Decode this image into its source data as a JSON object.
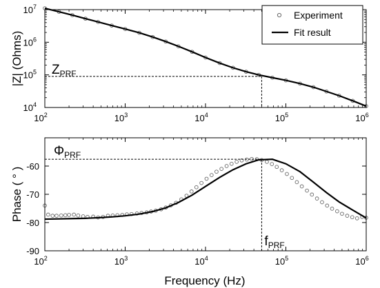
{
  "chart_data": [
    {
      "type": "line",
      "ylabel": "|Z| (Ohms)",
      "xlabel": "",
      "x_scale": "log",
      "y_scale": "log",
      "xlim": [
        100,
        1000000
      ],
      "ylim": [
        10000,
        10000000
      ],
      "x_ticks": [
        {
          "value": 100,
          "base": "10",
          "exp": "2"
        },
        {
          "value": 1000,
          "base": "10",
          "exp": "3"
        },
        {
          "value": 10000,
          "base": "10",
          "exp": "4"
        },
        {
          "value": 100000,
          "base": "10",
          "exp": "5"
        },
        {
          "value": 1000000,
          "base": "10",
          "exp": "6"
        }
      ],
      "y_ticks": [
        {
          "value": 10000,
          "base": "10",
          "exp": "4"
        },
        {
          "value": 100000,
          "base": "10",
          "exp": "5"
        },
        {
          "value": 1000000,
          "base": "10",
          "exp": "6"
        },
        {
          "value": 10000000,
          "base": "10",
          "exp": "7"
        }
      ],
      "legend": {
        "placement": "top-right",
        "entries": [
          {
            "label": "Experiment",
            "marker": "circle"
          },
          {
            "label": "Fit result",
            "marker": "line"
          }
        ]
      },
      "series": [
        {
          "name": "Experiment",
          "style": "markers",
          "x": [
            100,
            150,
            220,
            320,
            460,
            680,
            1000,
            1500,
            2200,
            3200,
            4600,
            6800,
            10000,
            15000,
            22000,
            32000,
            46000,
            68000,
            100000,
            150000,
            220000,
            320000,
            460000,
            680000,
            1000000
          ],
          "y": [
            11000000,
            8600000,
            6800000,
            5300000,
            4200000,
            3250000,
            2550000,
            1950000,
            1450000,
            1050000,
            750000,
            510000,
            340000,
            230000,
            165000,
            125000,
            100000,
            82000,
            68000,
            54000,
            42000,
            31000,
            23000,
            16000,
            11000
          ]
        },
        {
          "name": "Fit result",
          "style": "line",
          "x": [
            100,
            150,
            220,
            320,
            460,
            680,
            1000,
            1500,
            2200,
            3200,
            4600,
            6800,
            10000,
            15000,
            22000,
            32000,
            46000,
            68000,
            100000,
            150000,
            220000,
            320000,
            460000,
            680000,
            1000000
          ],
          "y": [
            11000000,
            8600000,
            6800000,
            5300000,
            4200000,
            3250000,
            2550000,
            1950000,
            1450000,
            1050000,
            750000,
            510000,
            340000,
            230000,
            165000,
            125000,
            100000,
            82000,
            68000,
            54000,
            42000,
            31000,
            23000,
            16000,
            11000
          ]
        }
      ],
      "annotations": [
        {
          "main": "Z",
          "sub": "PRF",
          "guide": "horizontal",
          "value": 90000
        }
      ]
    },
    {
      "type": "line",
      "ylabel": "Phase ( ° )",
      "xlabel": "Frequency (Hz)",
      "x_scale": "log",
      "xlim": [
        100,
        1000000
      ],
      "ylim": [
        -90,
        -50
      ],
      "x_ticks": [
        {
          "value": 100,
          "base": "10",
          "exp": "2"
        },
        {
          "value": 1000,
          "base": "10",
          "exp": "3"
        },
        {
          "value": 10000,
          "base": "10",
          "exp": "4"
        },
        {
          "value": 100000,
          "base": "10",
          "exp": "5"
        },
        {
          "value": 1000000,
          "base": "10",
          "exp": "6"
        }
      ],
      "y_ticks": [
        -90,
        -80,
        -70,
        -60
      ],
      "series": [
        {
          "name": "Experiment",
          "style": "markers",
          "x": [
            100,
            110,
            125,
            140,
            160,
            180,
            200,
            230,
            260,
            300,
            340,
            400,
            460,
            530,
            610,
            700,
            800,
            920,
            1050,
            1200,
            1400,
            1600,
            1850,
            2100,
            2400,
            2800,
            3200,
            3700,
            4300,
            5000,
            5800,
            6700,
            7700,
            8900,
            10300,
            11900,
            13700,
            15800,
            18300,
            21100,
            24400,
            28200,
            32600,
            37600,
            43500,
            50000,
            58000,
            67000,
            77000,
            89000,
            103000,
            119000,
            137000,
            158000,
            183000,
            211000,
            244000,
            282000,
            326000,
            376000,
            435000,
            500000,
            580000,
            670000,
            770000,
            890000,
            1000000
          ],
          "y": [
            -74,
            -77.2,
            -77.6,
            -77.6,
            -77.5,
            -77.4,
            -77.3,
            -77.2,
            -77.5,
            -77.8,
            -78.0,
            -77.9,
            -78.2,
            -78.0,
            -77.6,
            -77.5,
            -77.4,
            -77.3,
            -77.1,
            -77.0,
            -76.8,
            -76.6,
            -76.4,
            -76.1,
            -75.8,
            -75.3,
            -74.7,
            -73.9,
            -73.0,
            -71.8,
            -70.5,
            -69.0,
            -67.5,
            -66.0,
            -64.5,
            -63.2,
            -62.0,
            -61.0,
            -60.0,
            -59.2,
            -58.5,
            -58.0,
            -57.7,
            -57.5,
            -57.6,
            -57.9,
            -58.5,
            -59.3,
            -60.3,
            -61.5,
            -62.8,
            -64.2,
            -65.7,
            -67.2,
            -68.7,
            -70.1,
            -71.5,
            -72.8,
            -74.0,
            -75.1,
            -76.0,
            -76.9,
            -77.6,
            -78.1,
            -78.5,
            -78.0,
            -78.3
          ]
        },
        {
          "name": "Fit result",
          "style": "line",
          "x": [
            100,
            150,
            220,
            320,
            460,
            680,
            1000,
            1500,
            2200,
            3200,
            4600,
            6800,
            10000,
            15000,
            22000,
            32000,
            46000,
            68000,
            100000,
            150000,
            220000,
            320000,
            460000,
            680000,
            1000000
          ],
          "y": [
            -78.8,
            -78.7,
            -78.6,
            -78.5,
            -78.3,
            -78.0,
            -77.6,
            -77.0,
            -76.1,
            -74.8,
            -72.9,
            -70.3,
            -67.2,
            -64.0,
            -61.3,
            -59.2,
            -57.8,
            -57.6,
            -59.2,
            -62.0,
            -65.7,
            -69.4,
            -72.7,
            -75.6,
            -78.4
          ]
        }
      ],
      "annotations": [
        {
          "main": "Φ",
          "sub": "PRF",
          "guide": "horizontal",
          "value": -57.6
        },
        {
          "main": "f",
          "sub": "PRF",
          "guide": "vertical",
          "value": 50000
        }
      ]
    }
  ],
  "colors": {
    "line": "#000000",
    "marker_stroke": "#666666",
    "guide": "#000000"
  }
}
